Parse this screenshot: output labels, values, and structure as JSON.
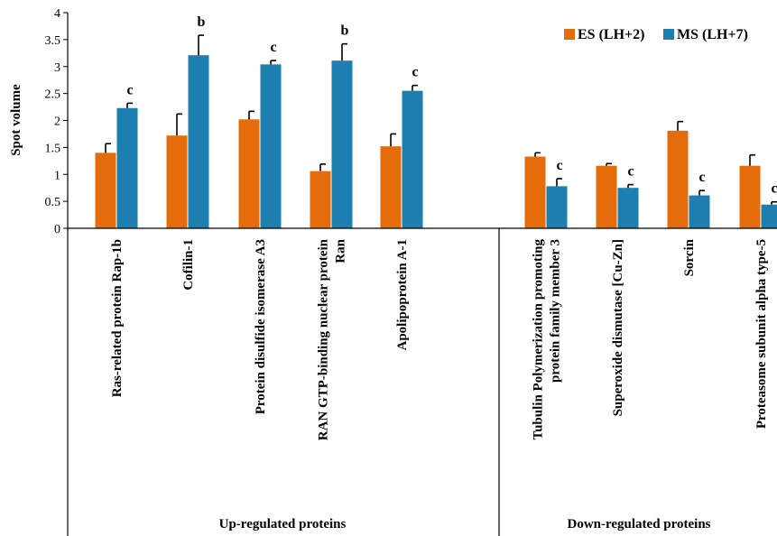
{
  "chart_data": {
    "type": "bar",
    "ylabel": "Spot volume",
    "xlabel": "",
    "ylim": [
      0,
      4
    ],
    "yticks": [
      0,
      0.5,
      1,
      1.5,
      2,
      2.5,
      3,
      3.5,
      4
    ],
    "ytick_labels": [
      "0",
      "0.5",
      "1",
      "1.5",
      "2",
      "2.5",
      "3",
      "3.5",
      "4"
    ],
    "grid": false,
    "legend_position": "top-right",
    "categories": [
      [
        "Ras-related protein Rap-1b"
      ],
      [
        "Cofilin-1"
      ],
      [
        "Protein disulfide isomerase A3"
      ],
      [
        "RAN GTP-binding nuclear protein",
        "Ran"
      ],
      [
        "Apolipoprotein A-1"
      ],
      [
        "Tubulin Polymerization promoting",
        "protein family member 3"
      ],
      [
        "Superoxide dismutase  [Cu-Zn]"
      ],
      [
        "Sorcin"
      ],
      [
        "Proteasome subunit alpha type-5"
      ]
    ],
    "groups": [
      {
        "label": "Up-regulated proteins",
        "start": 0,
        "end": 4
      },
      {
        "label": "Down-regulated proteins",
        "start": 5,
        "end": 8
      }
    ],
    "series": [
      {
        "name": "ES (LH+2)",
        "color": "#E46C0A",
        "values": [
          1.4,
          1.72,
          2.02,
          1.06,
          1.52,
          1.33,
          1.16,
          1.81,
          1.16
        ],
        "errors": [
          0.17,
          0.4,
          0.15,
          0.13,
          0.23,
          0.07,
          0.04,
          0.17,
          0.2
        ]
      },
      {
        "name": "MS (LH+7)",
        "color": "#1D7FAF",
        "values": [
          2.23,
          3.21,
          3.04,
          3.11,
          2.55,
          0.78,
          0.75,
          0.61,
          0.44
        ],
        "errors": [
          0.09,
          0.37,
          0.07,
          0.31,
          0.1,
          0.14,
          0.06,
          0.09,
          0.05
        ]
      }
    ],
    "significance_labels": [
      "c",
      "b",
      "c",
      "b",
      "c",
      "c",
      "c",
      "c",
      "c"
    ]
  }
}
